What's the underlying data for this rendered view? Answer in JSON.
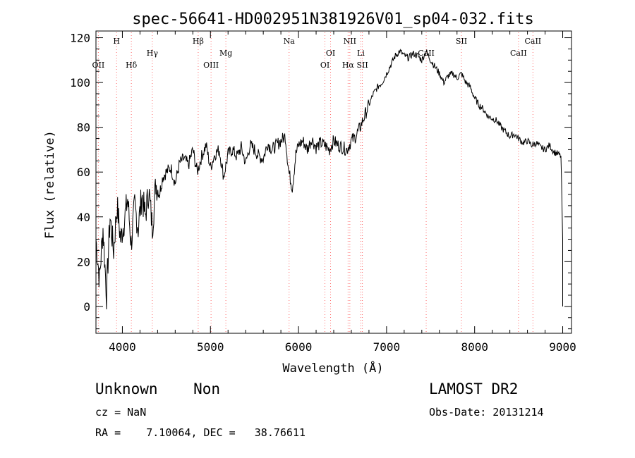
{
  "chart_data": {
    "type": "line",
    "title": "spec-56641-HD002951N381926V01_sp04-032.fits",
    "xlabel": "Wavelength (Å)",
    "ylabel": "Flux (relative)",
    "xlim": [
      3700,
      9100
    ],
    "ylim": [
      -12,
      123
    ],
    "x_ticks": [
      4000,
      5000,
      6000,
      7000,
      8000,
      9000
    ],
    "y_ticks": [
      0,
      20,
      40,
      60,
      80,
      100,
      120
    ],
    "grid": false,
    "series": [
      {
        "x": [
          3700,
          3740,
          3780,
          3820,
          3860,
          3900,
          3940,
          3980,
          4020,
          4060,
          4100,
          4140,
          4180,
          4220,
          4260,
          4300,
          4340,
          4380,
          4420,
          4460,
          4500,
          4550,
          4600,
          4650,
          4700,
          4750,
          4800,
          4850,
          4900,
          4950,
          5000,
          5050,
          5100,
          5150,
          5200,
          5250,
          5300,
          5350,
          5400,
          5450,
          5500,
          5550,
          5600,
          5650,
          5700,
          5750,
          5800,
          5850,
          5890,
          5930,
          5970,
          6000,
          6050,
          6100,
          6150,
          6200,
          6250,
          6300,
          6350,
          6400,
          6450,
          6500,
          6550,
          6600,
          6650,
          6700,
          6750,
          6800,
          6850,
          6900,
          6950,
          7000,
          7050,
          7100,
          7150,
          7200,
          7250,
          7300,
          7350,
          7400,
          7450,
          7500,
          7550,
          7600,
          7650,
          7700,
          7750,
          7800,
          7850,
          7900,
          7950,
          8000,
          8050,
          8100,
          8150,
          8200,
          8250,
          8300,
          8350,
          8400,
          8450,
          8500,
          8550,
          8600,
          8650,
          8700,
          8750,
          8800,
          8850,
          8900,
          8950,
          8980,
          9000,
          9000
        ],
        "y": [
          30,
          12,
          35,
          5,
          40,
          25,
          45,
          30,
          38,
          48,
          28,
          45,
          35,
          50,
          40,
          52,
          35,
          55,
          50,
          58,
          60,
          62,
          55,
          64,
          66,
          63,
          70,
          60,
          67,
          72,
          62,
          68,
          70,
          58,
          68,
          70,
          67,
          71,
          64,
          72,
          70,
          67,
          66,
          73,
          70,
          72,
          74,
          76,
          60,
          53,
          68,
          72,
          74,
          70,
          75,
          71,
          73,
          72,
          70,
          74,
          72,
          71,
          70,
          74,
          76,
          80,
          85,
          90,
          95,
          98,
          100,
          104,
          108,
          112,
          114,
          112,
          111,
          113,
          112,
          110,
          114,
          110,
          107,
          104,
          100,
          103,
          104,
          102,
          104,
          100,
          98,
          93,
          90,
          88,
          85,
          84,
          83,
          80,
          78,
          76,
          77,
          75,
          73,
          74,
          72,
          73,
          71,
          70,
          72,
          69,
          68,
          67,
          30,
          0
        ]
      }
    ],
    "line_labels": [
      {
        "text": "OII",
        "x": 3727,
        "row": "low"
      },
      {
        "text": "H",
        "x": 3934,
        "row": "top"
      },
      {
        "text": "Hδ",
        "x": 4102,
        "row": "low"
      },
      {
        "text": "Hγ",
        "x": 4340,
        "row": "mid"
      },
      {
        "text": "Hβ",
        "x": 4861,
        "row": "top"
      },
      {
        "text": "OIII",
        "x": 5007,
        "row": "low"
      },
      {
        "text": "Mg",
        "x": 5175,
        "row": "mid"
      },
      {
        "text": "Na",
        "x": 5893,
        "row": "top"
      },
      {
        "text": "OI",
        "x": 6300,
        "row": "low"
      },
      {
        "text": "OI",
        "x": 6364,
        "row": "mid"
      },
      {
        "text": "NII",
        "x": 6583,
        "row": "top"
      },
      {
        "text": "Hα",
        "x": 6563,
        "row": "low"
      },
      {
        "text": "Li",
        "x": 6708,
        "row": "mid"
      },
      {
        "text": "SII",
        "x": 6725,
        "row": "low"
      },
      {
        "text": "CaII",
        "x": 7450,
        "row": "mid"
      },
      {
        "text": "SII",
        "x": 7850,
        "row": "top"
      },
      {
        "text": "CaII",
        "x": 8498,
        "row": "mid"
      },
      {
        "text": "CaII",
        "x": 8662,
        "row": "top"
      }
    ]
  },
  "info": {
    "class_text": "Unknown    Non",
    "survey_text": "LAMOST DR2",
    "cz_text": "cz = NaN",
    "obs_date_text": "Obs-Date: 20131214",
    "coords_text": "RA =    7.10064, DEC =   38.76611"
  }
}
